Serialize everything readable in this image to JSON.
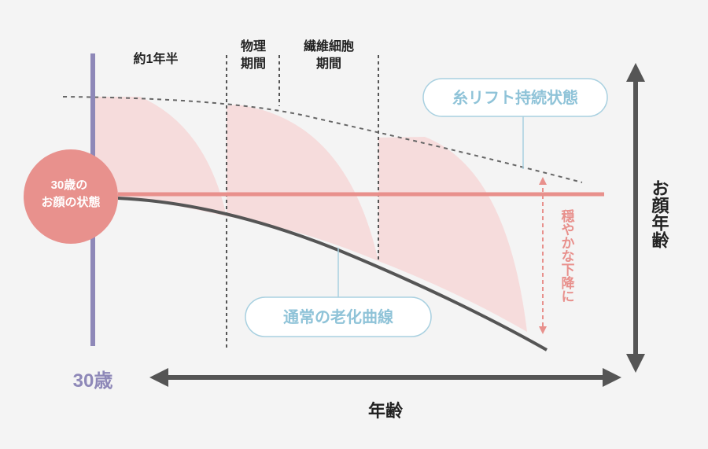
{
  "phase_labels": [
    [
      "約1年半"
    ],
    [
      "物理",
      "期間"
    ],
    [
      "繊維細胞",
      "期間"
    ]
  ],
  "lift_label": "糸リフト持続状態",
  "face_state": [
    "30歳の",
    "お顔の状態"
  ],
  "aging_curve_label": "通常の老化曲線",
  "gentle_decline": "穏やかな下降に",
  "y_axis_label": "お顔年齢",
  "start_age": "30歳",
  "x_axis_label": "年齢"
}
